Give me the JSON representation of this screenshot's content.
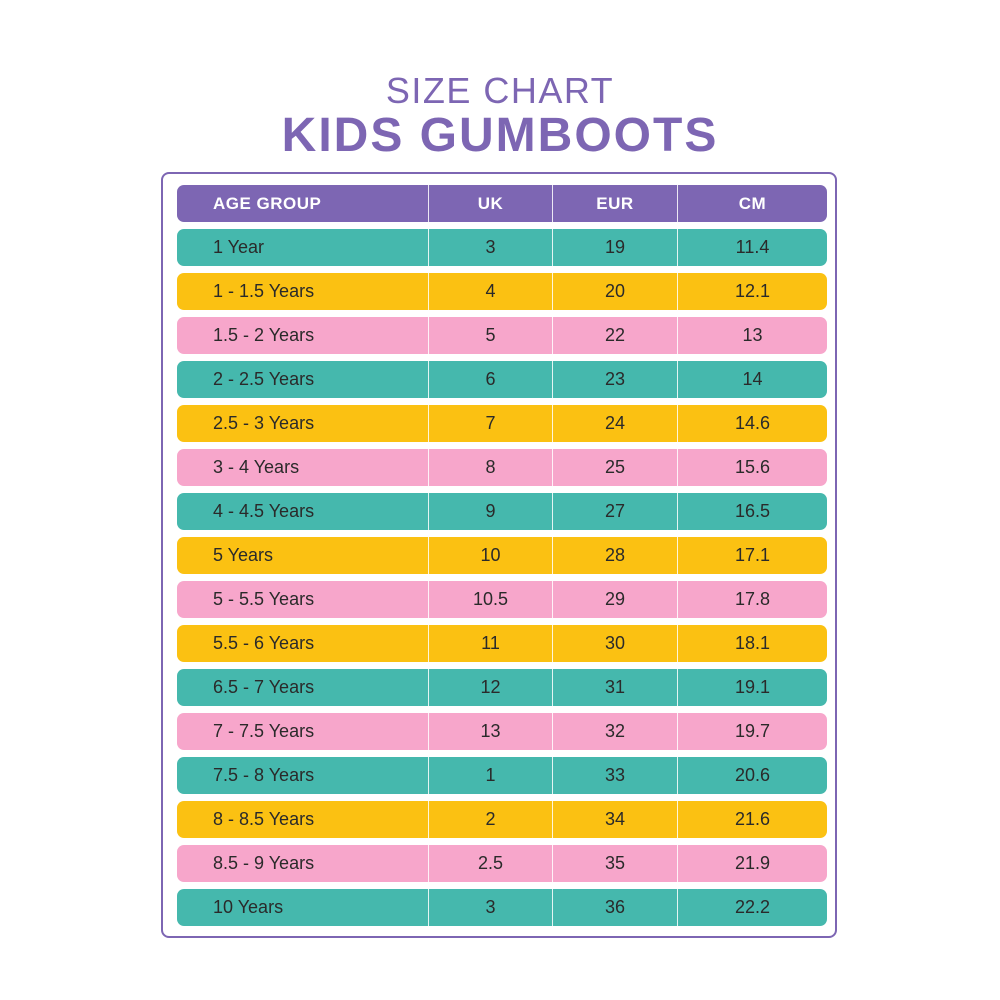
{
  "title": {
    "line1": "SIZE CHART",
    "line2": "KIDS GUMBOOTS"
  },
  "colors": {
    "purple": "#7d66b3",
    "teal": "#45b8ad",
    "yellow": "#fbc112",
    "pink": "#f7a6cb"
  },
  "table": {
    "headers": [
      "AGE GROUP",
      "UK",
      "EUR",
      "CM"
    ],
    "rows": [
      {
        "age": "1 Year",
        "uk": "3",
        "eur": "19",
        "cm": "11.4",
        "color": "teal"
      },
      {
        "age": "1 - 1.5 Years",
        "uk": "4",
        "eur": "20",
        "cm": "12.1",
        "color": "yellow"
      },
      {
        "age": "1.5 - 2 Years",
        "uk": "5",
        "eur": "22",
        "cm": "13",
        "color": "pink"
      },
      {
        "age": "2 - 2.5 Years",
        "uk": "6",
        "eur": "23",
        "cm": "14",
        "color": "teal"
      },
      {
        "age": "2.5 - 3 Years",
        "uk": "7",
        "eur": "24",
        "cm": "14.6",
        "color": "yellow"
      },
      {
        "age": "3 - 4 Years",
        "uk": "8",
        "eur": "25",
        "cm": "15.6",
        "color": "pink"
      },
      {
        "age": "4 - 4.5 Years",
        "uk": "9",
        "eur": "27",
        "cm": "16.5",
        "color": "teal"
      },
      {
        "age": "5 Years",
        "uk": "10",
        "eur": "28",
        "cm": "17.1",
        "color": "yellow"
      },
      {
        "age": "5 - 5.5 Years",
        "uk": "10.5",
        "eur": "29",
        "cm": "17.8",
        "color": "pink"
      },
      {
        "age": "5.5 - 6 Years",
        "uk": "11",
        "eur": "30",
        "cm": "18.1",
        "color": "yellow"
      },
      {
        "age": "6.5 - 7 Years",
        "uk": "12",
        "eur": "31",
        "cm": "19.1",
        "color": "teal"
      },
      {
        "age": "7 - 7.5 Years",
        "uk": "13",
        "eur": "32",
        "cm": "19.7",
        "color": "pink"
      },
      {
        "age": "7.5 - 8 Years",
        "uk": "1",
        "eur": "33",
        "cm": "20.6",
        "color": "teal"
      },
      {
        "age": "8 - 8.5 Years",
        "uk": "2",
        "eur": "34",
        "cm": "21.6",
        "color": "yellow"
      },
      {
        "age": "8.5 - 9 Years",
        "uk": "2.5",
        "eur": "35",
        "cm": "21.9",
        "color": "pink"
      },
      {
        "age": "10 Years",
        "uk": "3",
        "eur": "36",
        "cm": "22.2",
        "color": "teal"
      }
    ]
  }
}
